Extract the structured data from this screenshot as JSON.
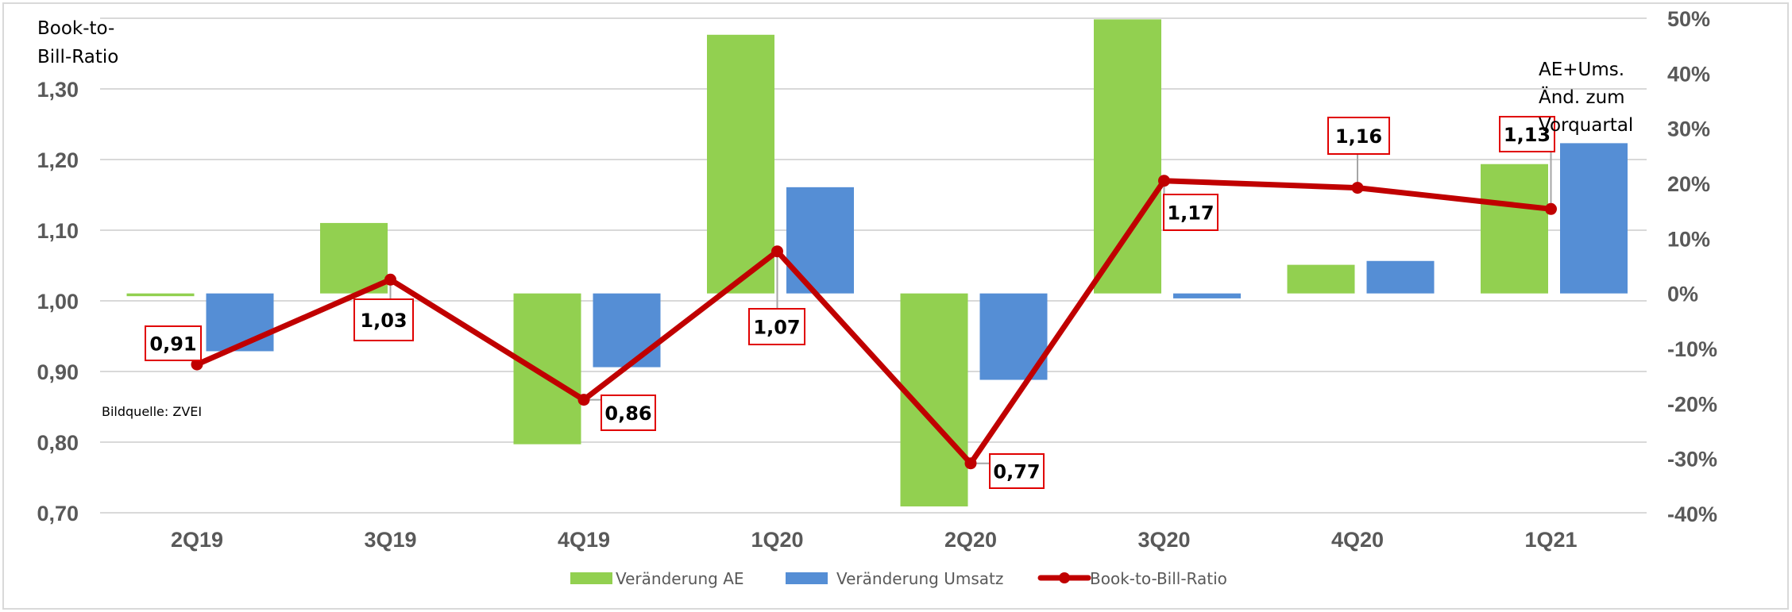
{
  "chart_data": {
    "type": "bar",
    "title": "",
    "categories": [
      "2Q19",
      "3Q19",
      "4Q19",
      "1Q20",
      "2Q20",
      "3Q20",
      "4Q20",
      "1Q21"
    ],
    "series": [
      {
        "name": "Veränderung AE",
        "type": "bar",
        "axis": "right",
        "color": "#92d050",
        "unit": "%",
        "values": [
          -0.5,
          12.8,
          -27.4,
          47.0,
          -38.7,
          49.8,
          5.2,
          23.5
        ]
      },
      {
        "name": "Veränderung Umsatz",
        "type": "bar",
        "axis": "right",
        "color": "#558ed5",
        "unit": "%",
        "values": [
          -10.5,
          0.0,
          -13.4,
          19.3,
          -15.7,
          -0.9,
          5.9,
          27.3
        ]
      },
      {
        "name": "Book-to-Bill-Ratio",
        "type": "line",
        "axis": "left",
        "color": "#c00000",
        "values": [
          0.91,
          1.03,
          0.86,
          1.07,
          0.77,
          1.17,
          1.16,
          1.13
        ],
        "labels": [
          "0,91",
          "1,03",
          "0,86",
          "1,07",
          "0,77",
          "1,17",
          "1,16",
          "1,13"
        ]
      }
    ],
    "left_axis": {
      "label_lines": [
        "Book-to-",
        "Bill-Ratio"
      ],
      "range": [
        0.7,
        1.4
      ],
      "ticks": [
        "1,30",
        "1,20",
        "1,10",
        "1,00",
        "0,90",
        "0,80",
        "0,70"
      ],
      "tick_values": [
        1.3,
        1.2,
        1.1,
        1.0,
        0.9,
        0.8,
        0.7
      ]
    },
    "right_axis": {
      "label_lines": [
        "AE+Ums.",
        "Änd. zum",
        "Vorquartal"
      ],
      "range": [
        -40,
        50
      ],
      "ticks": [
        "50%",
        "40%",
        "30%",
        "20%",
        "10%",
        "0%",
        "-10%",
        "-20%",
        "-30%",
        "-40%"
      ],
      "tick_values": [
        50,
        40,
        30,
        20,
        10,
        0,
        -10,
        -20,
        -30,
        -40
      ]
    },
    "annotation": "Bildquelle: ZVEI",
    "grid": true,
    "legend_position": "bottom"
  }
}
